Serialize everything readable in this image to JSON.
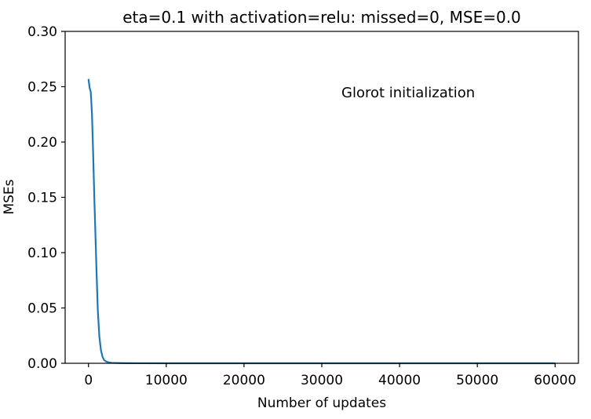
{
  "chart_data": {
    "type": "line",
    "title": "eta=0.1 with activation=relu: missed=0, MSE=0.0",
    "xlabel": "Number of updates",
    "ylabel": "MSEs",
    "annotation": "Glorot initialization",
    "xlim": [
      -3000,
      63000
    ],
    "ylim": [
      0,
      0.3
    ],
    "xticks": [
      0,
      10000,
      20000,
      30000,
      40000,
      50000,
      60000
    ],
    "xtick_labels": [
      "0",
      "10000",
      "20000",
      "30000",
      "40000",
      "50000",
      "60000"
    ],
    "yticks": [
      0.0,
      0.05,
      0.1,
      0.15,
      0.2,
      0.25,
      0.3
    ],
    "ytick_labels": [
      "0.00",
      "0.05",
      "0.10",
      "0.15",
      "0.20",
      "0.25",
      "0.30"
    ],
    "grid": false,
    "line_color": "#1f77b4",
    "series": [
      {
        "x": [
          0,
          150,
          300,
          450,
          600,
          750,
          900,
          1050,
          1200,
          1400,
          1600,
          1800,
          2000,
          2300,
          2600,
          3000,
          4000,
          5000,
          7000,
          10000,
          20000,
          30000,
          40000,
          50000,
          60000
        ],
        "values": [
          0.257,
          0.249,
          0.245,
          0.225,
          0.19,
          0.15,
          0.115,
          0.08,
          0.048,
          0.024,
          0.012,
          0.006,
          0.003,
          0.0015,
          0.0008,
          0.0004,
          0.0002,
          0.0001,
          5e-05,
          2e-05,
          1e-05,
          0.0,
          0.0,
          0.0,
          0.0
        ]
      }
    ]
  }
}
